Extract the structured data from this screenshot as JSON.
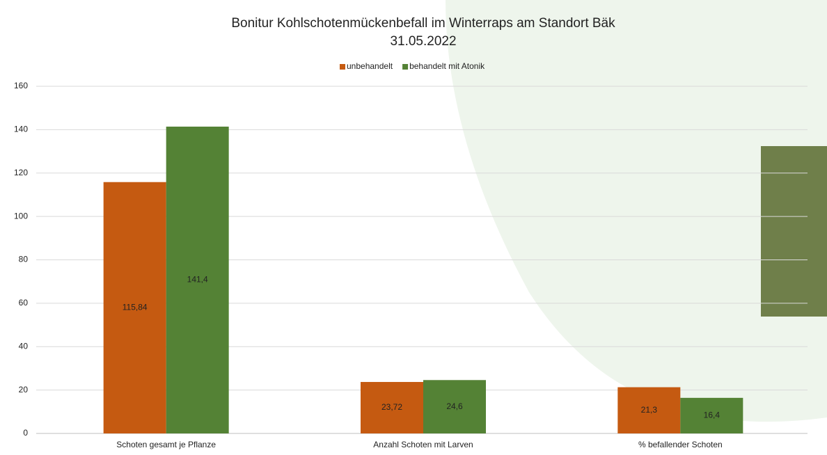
{
  "chart_data": {
    "type": "bar",
    "title": "Bonitur Kohlschotenmückenbefall im Winterraps am Standort Bäk",
    "subtitle": "31.05.2022",
    "categories": [
      "Schoten gesamt je Pflanze",
      "Anzahl Schoten mit Larven",
      "% befallender Schoten"
    ],
    "series": [
      {
        "name": "unbehandelt",
        "color": "#c55a11",
        "values": [
          115.84,
          23.72,
          21.3
        ],
        "value_labels": [
          "115,84",
          "23,72",
          "21,3"
        ]
      },
      {
        "name": "behandelt mit Atonik",
        "color": "#548235",
        "values": [
          141.4,
          24.6,
          16.4
        ],
        "value_labels": [
          "141,4",
          "24,6",
          "16,4"
        ]
      }
    ],
    "ylim": [
      0,
      160
    ],
    "yticks": [
      0,
      20,
      40,
      60,
      80,
      100,
      120,
      140,
      160
    ],
    "grid": true,
    "legend": "top"
  }
}
